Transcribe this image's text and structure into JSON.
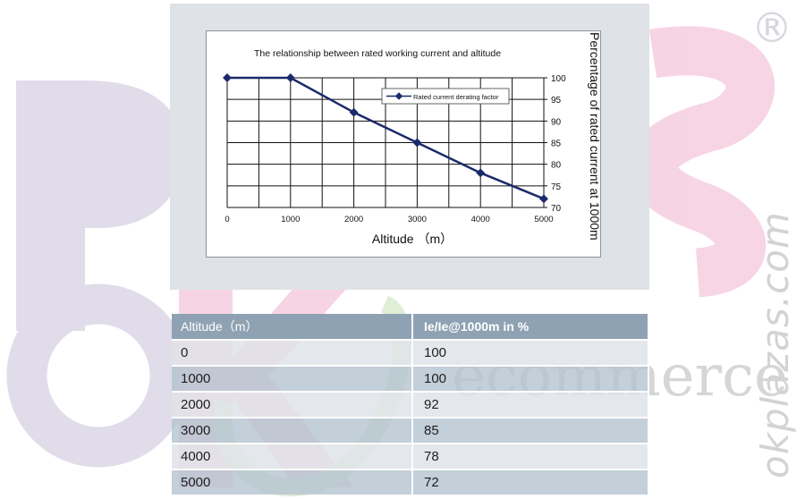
{
  "chart_data": {
    "type": "line",
    "title": "The relationship between rated working current and altitude",
    "xlabel": "Altitude （m）",
    "ylabel": "Percentage of rated current at 1000m",
    "x": [
      0,
      1000,
      2000,
      3000,
      4000,
      5000
    ],
    "series": [
      {
        "name": "Rated current derating factor",
        "values": [
          100,
          100,
          92,
          85,
          78,
          72
        ]
      }
    ],
    "xlim": [
      0,
      5000
    ],
    "ylim": [
      70,
      100
    ],
    "xticks": [
      "0",
      "1000",
      "2000",
      "3000",
      "4000",
      "5000"
    ],
    "yticks": [
      "70",
      "75",
      "80",
      "85",
      "90",
      "95",
      "100"
    ],
    "grid": true,
    "legend_position": "top-right",
    "y_axis_side": "right",
    "colors": {
      "series": "#1b2a6b",
      "grid": "#111111"
    }
  },
  "table": {
    "headers": [
      "Altitude（m）",
      "Ie/Ie@1000m in %"
    ],
    "rows": [
      [
        "0",
        "100"
      ],
      [
        "1000",
        "100"
      ],
      [
        "2000",
        "92"
      ],
      [
        "3000",
        "85"
      ],
      [
        "4000",
        "78"
      ],
      [
        "5000",
        "72"
      ]
    ]
  },
  "watermark": {
    "brand": "okplazas.com",
    "word": "ecommerce",
    "registered": "®"
  }
}
